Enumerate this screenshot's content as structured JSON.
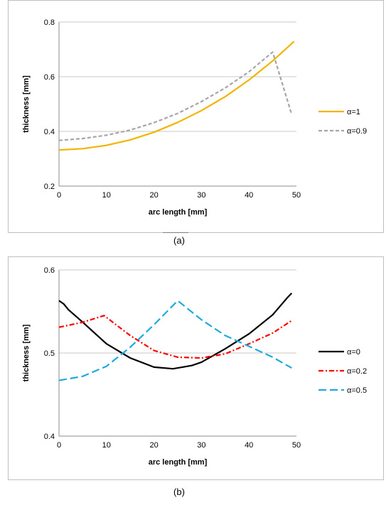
{
  "chart_data": [
    {
      "type": "line",
      "caption": "(a)",
      "xlabel": "arc length [mm]",
      "ylabel": "thickness [mm]",
      "xlim": [
        0,
        50
      ],
      "ylim": [
        0.2,
        0.8
      ],
      "xticks": [
        "0",
        "10",
        "20",
        "30",
        "40",
        "50"
      ],
      "yticks": [
        "0.2",
        "0.4",
        "0.6",
        "0.8"
      ],
      "grid": true,
      "legend_position": "right",
      "series": [
        {
          "name": "α=1",
          "color": "#f2b400",
          "style": "solid",
          "x": [
            0,
            5,
            10,
            15,
            20,
            25,
            30,
            35,
            40,
            45,
            49.5
          ],
          "y": [
            0.332,
            0.337,
            0.349,
            0.369,
            0.397,
            0.433,
            0.476,
            0.527,
            0.588,
            0.658,
            0.729
          ]
        },
        {
          "name": "α=0.9",
          "color": "#a6a6a6",
          "style": "dashed",
          "x": [
            0,
            5,
            10,
            15,
            20,
            25,
            30,
            35,
            40,
            44.5,
            45,
            49
          ],
          "y": [
            0.367,
            0.374,
            0.386,
            0.405,
            0.432,
            0.466,
            0.509,
            0.559,
            0.618,
            0.683,
            0.69,
            0.462
          ]
        }
      ]
    },
    {
      "type": "line",
      "caption": "(b)",
      "xlabel": "arc length [mm]",
      "ylabel": "thickness [mm]",
      "xlim": [
        0,
        50
      ],
      "ylim": [
        0.4,
        0.6
      ],
      "xticks": [
        "0",
        "10",
        "20",
        "30",
        "40",
        "50"
      ],
      "yticks": [
        "0.4",
        "0.5",
        "0.6"
      ],
      "grid": true,
      "legend_position": "right",
      "series": [
        {
          "name": "α=0",
          "color": "#000000",
          "style": "solid",
          "x": [
            0,
            1,
            2,
            5,
            10,
            15,
            20,
            24,
            28,
            30,
            35,
            40,
            45,
            48,
            49
          ],
          "y": [
            0.563,
            0.559,
            0.552,
            0.537,
            0.511,
            0.494,
            0.483,
            0.481,
            0.485,
            0.489,
            0.505,
            0.523,
            0.546,
            0.566,
            0.572
          ]
        },
        {
          "name": "α=0.2",
          "color": "#ff0000",
          "style": "dashdot",
          "x": [
            0,
            5,
            9.5,
            12,
            15,
            20,
            25,
            30,
            35,
            40,
            45,
            49
          ],
          "y": [
            0.531,
            0.537,
            0.545,
            0.534,
            0.521,
            0.503,
            0.495,
            0.494,
            0.499,
            0.511,
            0.524,
            0.539
          ]
        },
        {
          "name": "α=0.5",
          "color": "#1eaadc",
          "style": "longdash",
          "x": [
            0,
            1,
            2,
            5,
            10,
            15,
            20,
            25,
            30,
            35,
            40,
            45,
            49
          ],
          "y": [
            0.467,
            0.468,
            0.469,
            0.472,
            0.484,
            0.507,
            0.534,
            0.563,
            0.54,
            0.521,
            0.508,
            0.495,
            0.482
          ]
        }
      ]
    }
  ]
}
